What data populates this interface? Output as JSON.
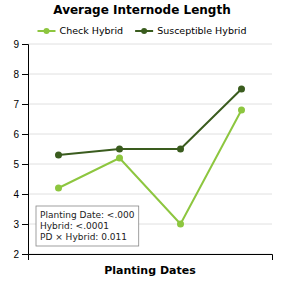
{
  "chart_data": {
    "type": "line",
    "title": "Average Internode Length",
    "xlabel": "Planting Dates",
    "x": [
      1,
      2,
      3,
      4
    ],
    "xlim": [
      0.5,
      4.5
    ],
    "xticks": [],
    "ylim": [
      2,
      9
    ],
    "yticks": [
      2,
      3,
      4,
      5,
      6,
      7,
      8,
      9
    ],
    "grid": true,
    "legend": "top",
    "tick_labels": "y",
    "annotations": [
      "Planting Date: <.000\nHybrid: <.0001\nPD × Hybrid: 0.011"
    ],
    "series": [
      {
        "name": "Check Hybrid",
        "color": "#8dc63f",
        "marker": "circle",
        "values": [
          4.2,
          5.2,
          3.0,
          6.8
        ]
      },
      {
        "name": "Susceptible Hybrid",
        "color": "#3a5c1e",
        "marker": "circle",
        "values": [
          5.3,
          5.5,
          5.5,
          7.5
        ]
      }
    ]
  }
}
